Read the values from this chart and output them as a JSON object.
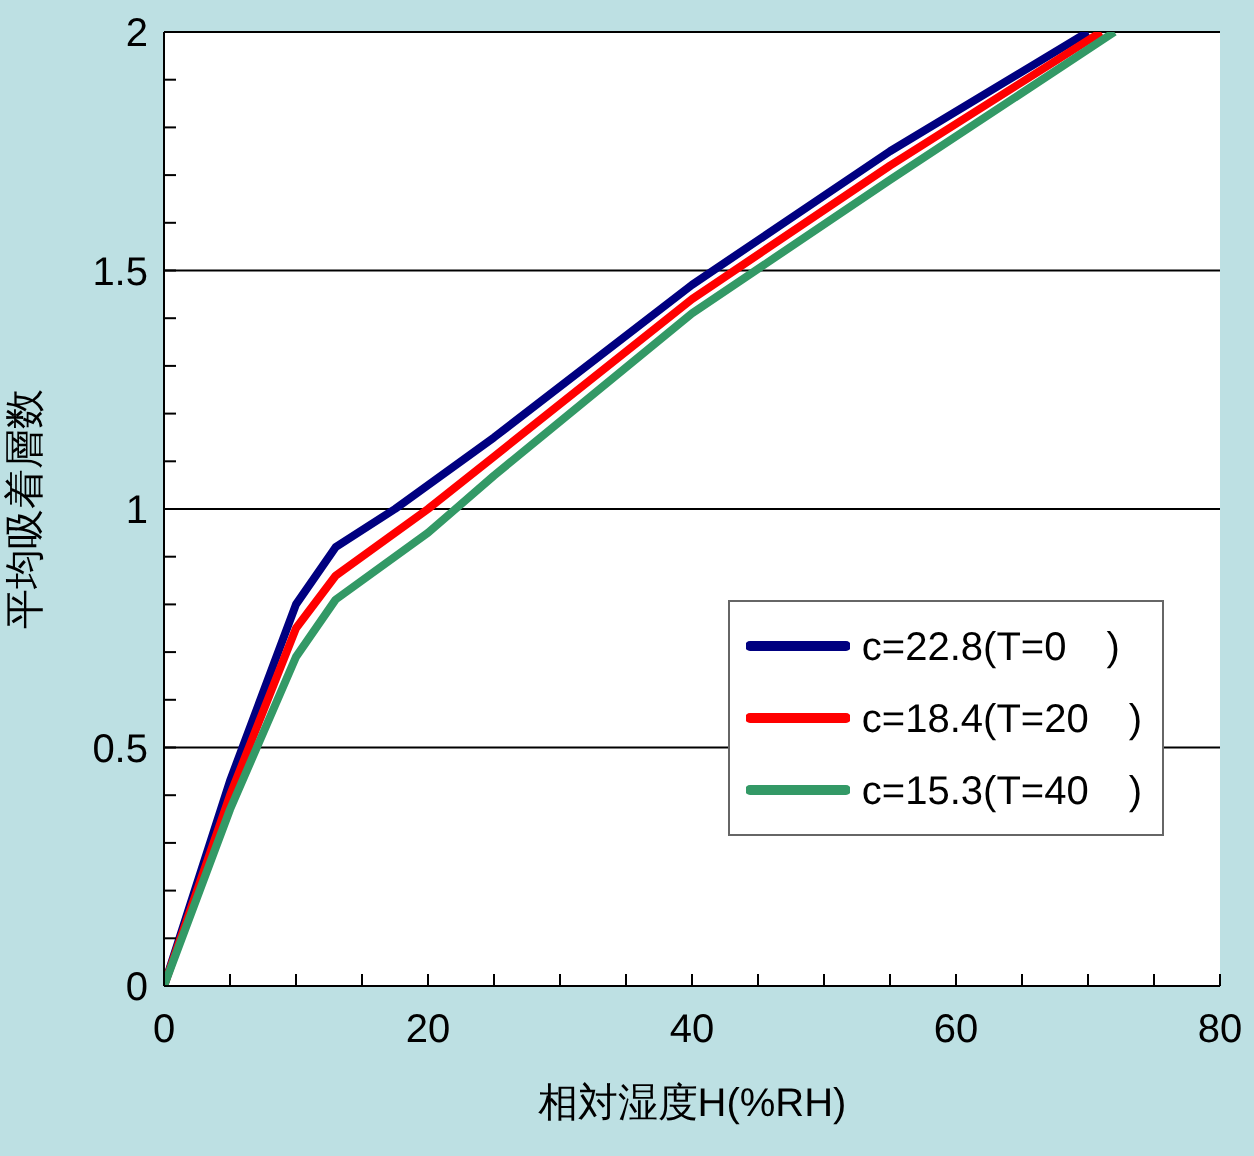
{
  "chart_data": {
    "type": "line",
    "xlabel": "相対湿度H(%RH)",
    "ylabel": "平均吸着層数",
    "xlim": [
      0,
      80
    ],
    "xticks": [
      0,
      {
        "value": 5,
        "label": null
      },
      {
        "value": 10,
        "label": null
      },
      {
        "value": 15,
        "label": null
      },
      20,
      {
        "value": 25,
        "label": null
      },
      {
        "value": 30,
        "label": null
      },
      {
        "value": 35,
        "label": null
      },
      40,
      {
        "value": 45,
        "label": null
      },
      {
        "value": 50,
        "label": null
      },
      {
        "value": 55,
        "label": null
      },
      60,
      {
        "value": 65,
        "label": null
      },
      {
        "value": 70,
        "label": null
      },
      {
        "value": 75,
        "label": null
      },
      80
    ],
    "ylim": [
      0,
      2
    ],
    "yticks": [
      0,
      {
        "value": 0.1,
        "label": null
      },
      {
        "value": 0.2,
        "label": null
      },
      {
        "value": 0.3,
        "label": null
      },
      {
        "value": 0.4,
        "label": null
      },
      0.5,
      {
        "value": 0.6,
        "label": null
      },
      {
        "value": 0.7,
        "label": null
      },
      {
        "value": 0.8,
        "label": null
      },
      {
        "value": 0.9,
        "label": null
      },
      1,
      {
        "value": 1.1,
        "label": null
      },
      {
        "value": 1.2,
        "label": null
      },
      {
        "value": 1.3,
        "label": null
      },
      {
        "value": 1.4,
        "label": null
      },
      1.5,
      {
        "value": 1.6,
        "label": null
      },
      {
        "value": 1.7,
        "label": null
      },
      {
        "value": 1.8,
        "label": null
      },
      {
        "value": 1.9,
        "label": null
      },
      2
    ],
    "grid": "y",
    "legend": "bottom right",
    "marker": "none",
    "line_style": "solid",
    "series": [
      {
        "name": "c=22.8(T=0　)",
        "color": "#000080",
        "x": [
          0,
          5,
          10,
          13,
          17.5,
          25,
          40,
          55,
          70
        ],
        "values": [
          0,
          0.43,
          0.8,
          0.92,
          1.0,
          1.15,
          1.47,
          1.75,
          2.0
        ]
      },
      {
        "name": "c=18.4(T=20　)",
        "color": "#ff0000",
        "x": [
          0,
          5,
          10,
          13,
          20,
          25,
          40,
          55,
          71
        ],
        "values": [
          0,
          0.4,
          0.75,
          0.86,
          1.0,
          1.11,
          1.44,
          1.72,
          2.0
        ]
      },
      {
        "name": "c=15.3(T=40　)",
        "color": "#339966",
        "x": [
          0,
          5,
          10,
          13,
          20,
          25,
          40,
          55,
          72
        ],
        "values": [
          0,
          0.37,
          0.69,
          0.81,
          0.95,
          1.07,
          1.41,
          1.69,
          2.0
        ]
      }
    ]
  }
}
